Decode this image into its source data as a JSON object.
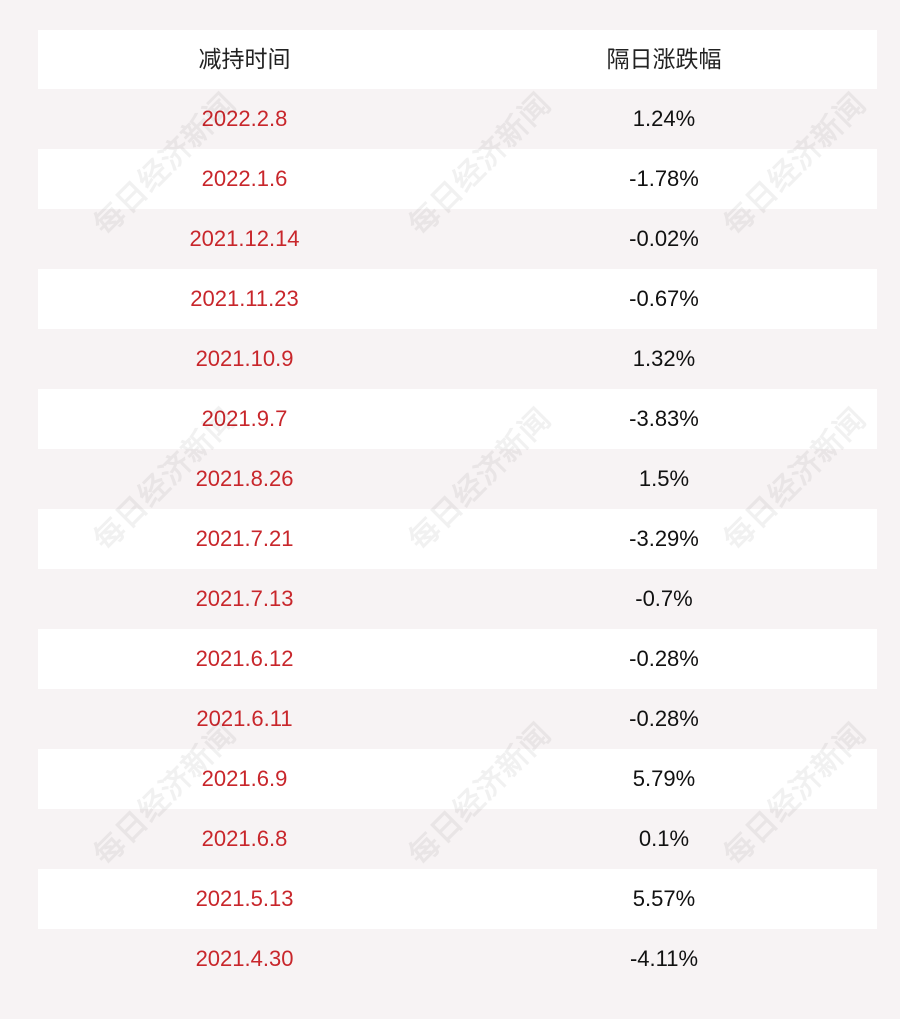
{
  "table": {
    "headers": [
      "减持时间",
      "隔日涨跌幅"
    ],
    "rows": [
      {
        "date": "2022.2.8",
        "change": "1.24%"
      },
      {
        "date": "2022.1.6",
        "change": "-1.78%"
      },
      {
        "date": "2021.12.14",
        "change": "-0.02%"
      },
      {
        "date": "2021.11.23",
        "change": "-0.67%"
      },
      {
        "date": "2021.10.9",
        "change": "1.32%"
      },
      {
        "date": "2021.9.7",
        "change": "-3.83%"
      },
      {
        "date": "2021.8.26",
        "change": "1.5%"
      },
      {
        "date": "2021.7.21",
        "change": "-3.29%"
      },
      {
        "date": "2021.7.13",
        "change": "-0.7%"
      },
      {
        "date": "2021.6.12",
        "change": "-0.28%"
      },
      {
        "date": "2021.6.11",
        "change": "-0.28%"
      },
      {
        "date": "2021.6.9",
        "change": "5.79%"
      },
      {
        "date": "2021.6.8",
        "change": "0.1%"
      },
      {
        "date": "2021.5.13",
        "change": "5.57%"
      },
      {
        "date": "2021.4.30",
        "change": "-4.11%"
      }
    ]
  },
  "watermark": {
    "text": "每日经济新闻"
  },
  "colors": {
    "date_text": "#c8262b",
    "background": "#f7f3f4",
    "row_alt": "#ffffff"
  }
}
